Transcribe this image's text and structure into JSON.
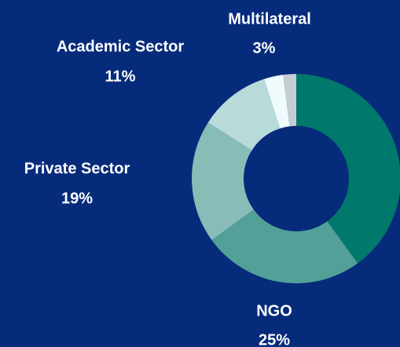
{
  "chart_data": {
    "type": "donut",
    "categories": [
      null,
      "NGO",
      "Private Sector",
      "Academic Sector",
      "Multilateral",
      null
    ],
    "values": [
      40,
      25,
      19,
      11,
      3,
      2
    ],
    "value_labels": [
      null,
      "25%",
      "19%",
      "11%",
      "3%",
      null
    ],
    "colors": [
      "#00786b",
      "#52a097",
      "#88bcb7",
      "#b8dad8",
      "#effbfd",
      "#c5cdd3"
    ],
    "background": "#062b7b"
  }
}
